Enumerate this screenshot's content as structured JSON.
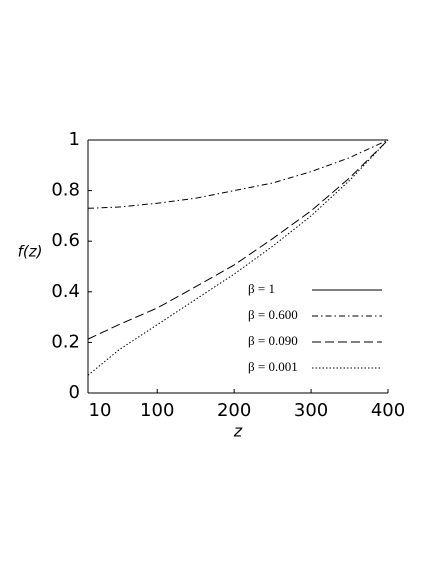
{
  "chart_data": {
    "type": "line",
    "xlabel": "z",
    "ylabel": "f(z)",
    "x": [
      10,
      50,
      100,
      150,
      200,
      250,
      300,
      350,
      400
    ],
    "series": [
      {
        "name": "β = 1",
        "color": "#000000",
        "line_style": "solid",
        "values": [
          1,
          1,
          1,
          1,
          1,
          1,
          1,
          1,
          1
        ]
      },
      {
        "name": "β = 0.600",
        "color": "#000000",
        "line_style": "dashdot",
        "values": [
          0.73,
          0.735,
          0.75,
          0.77,
          0.8,
          0.83,
          0.875,
          0.93,
          1
        ]
      },
      {
        "name": "β = 0.090",
        "color": "#000000",
        "line_style": "dashed",
        "values": [
          0.213,
          0.27,
          0.336,
          0.42,
          0.506,
          0.61,
          0.72,
          0.85,
          1
        ]
      },
      {
        "name": "β = 0.001",
        "color": "#000000",
        "line_style": "dotted",
        "values": [
          0.07,
          0.17,
          0.27,
          0.37,
          0.47,
          0.58,
          0.7,
          0.84,
          1
        ]
      }
    ],
    "xlim": [
      10,
      400
    ],
    "xticks": [
      10,
      100,
      200,
      300,
      400
    ],
    "ylim": [
      0,
      1
    ],
    "yticks": [
      0,
      0.2,
      0.4,
      0.6,
      0.8,
      1
    ],
    "grid": false,
    "legend": "lower right"
  }
}
